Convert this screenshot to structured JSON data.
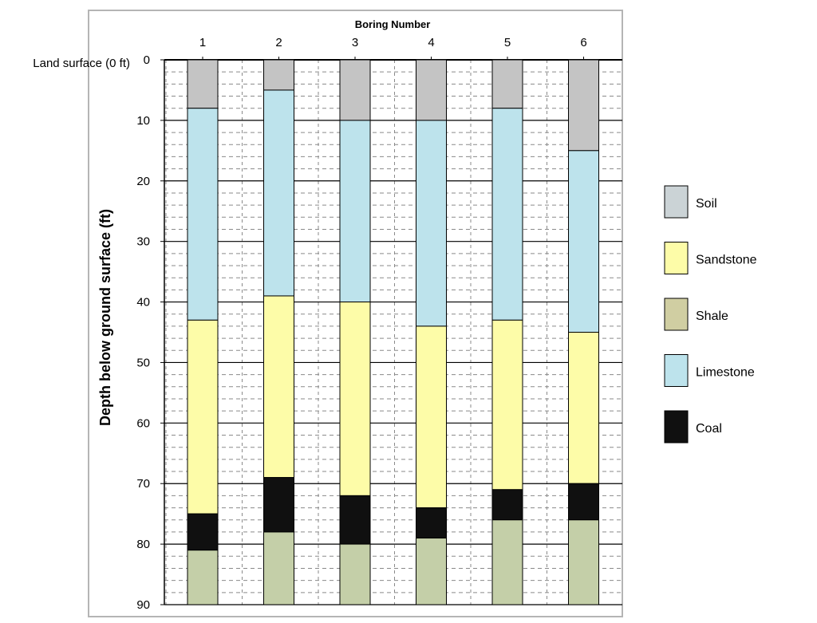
{
  "chart_data": {
    "type": "bar",
    "title": "Boring Number",
    "xlabel": "",
    "ylabel": "Depth below ground surface (ft)",
    "annotation": "Land surface (0 ft)",
    "categories": [
      "1",
      "2",
      "3",
      "4",
      "5",
      "6"
    ],
    "ylim": [
      0,
      90
    ],
    "y_ticks": [
      "0",
      "10",
      "20",
      "30",
      "40",
      "50",
      "60",
      "70",
      "80",
      "90"
    ],
    "y_tick_values": [
      0,
      10,
      20,
      30,
      40,
      50,
      60,
      70,
      80,
      90
    ],
    "y_axis_inverted": true,
    "grid": "major solid every 10 ft, minor dashed every 2 ft, dashed vertical lines",
    "legend_position": "right",
    "legend": [
      {
        "key": "soil",
        "label": "Soil"
      },
      {
        "key": "sandstone",
        "label": "Sandstone"
      },
      {
        "key": "shale",
        "label": "Shale"
      },
      {
        "key": "limestone",
        "label": "Limestone"
      },
      {
        "key": "coal",
        "label": "Coal"
      }
    ],
    "colors": {
      "soil": "#c4c4c4",
      "sandstone": "#fdfca8",
      "shale": "#c4cfa8",
      "limestone": "#bde3ec",
      "coal": "#101010",
      "legend_soil": "#cbd3d6",
      "legend_shale": "#d0cea2"
    },
    "borings": [
      {
        "boring": "1",
        "layers": [
          {
            "rock": "soil",
            "top": 0,
            "bottom": 8
          },
          {
            "rock": "limestone",
            "top": 8,
            "bottom": 43
          },
          {
            "rock": "sandstone",
            "top": 43,
            "bottom": 75
          },
          {
            "rock": "coal",
            "top": 75,
            "bottom": 81
          },
          {
            "rock": "shale",
            "top": 81,
            "bottom": 90
          }
        ]
      },
      {
        "boring": "2",
        "layers": [
          {
            "rock": "soil",
            "top": 0,
            "bottom": 5
          },
          {
            "rock": "limestone",
            "top": 5,
            "bottom": 39
          },
          {
            "rock": "sandstone",
            "top": 39,
            "bottom": 69
          },
          {
            "rock": "coal",
            "top": 69,
            "bottom": 78
          },
          {
            "rock": "shale",
            "top": 78,
            "bottom": 90
          }
        ]
      },
      {
        "boring": "3",
        "layers": [
          {
            "rock": "soil",
            "top": 0,
            "bottom": 10
          },
          {
            "rock": "limestone",
            "top": 10,
            "bottom": 40
          },
          {
            "rock": "sandstone",
            "top": 40,
            "bottom": 72
          },
          {
            "rock": "coal",
            "top": 72,
            "bottom": 80
          },
          {
            "rock": "shale",
            "top": 80,
            "bottom": 90
          }
        ]
      },
      {
        "boring": "4",
        "layers": [
          {
            "rock": "soil",
            "top": 0,
            "bottom": 10
          },
          {
            "rock": "limestone",
            "top": 10,
            "bottom": 44
          },
          {
            "rock": "sandstone",
            "top": 44,
            "bottom": 74
          },
          {
            "rock": "coal",
            "top": 74,
            "bottom": 79
          },
          {
            "rock": "shale",
            "top": 79,
            "bottom": 90
          }
        ]
      },
      {
        "boring": "5",
        "layers": [
          {
            "rock": "soil",
            "top": 0,
            "bottom": 8
          },
          {
            "rock": "limestone",
            "top": 8,
            "bottom": 43
          },
          {
            "rock": "sandstone",
            "top": 43,
            "bottom": 71
          },
          {
            "rock": "coal",
            "top": 71,
            "bottom": 76
          },
          {
            "rock": "shale",
            "top": 76,
            "bottom": 90
          }
        ]
      },
      {
        "boring": "6",
        "layers": [
          {
            "rock": "soil",
            "top": 0,
            "bottom": 15
          },
          {
            "rock": "limestone",
            "top": 15,
            "bottom": 45
          },
          {
            "rock": "sandstone",
            "top": 45,
            "bottom": 70
          },
          {
            "rock": "coal",
            "top": 70,
            "bottom": 76
          },
          {
            "rock": "shale",
            "top": 76,
            "bottom": 90
          }
        ]
      }
    ]
  }
}
